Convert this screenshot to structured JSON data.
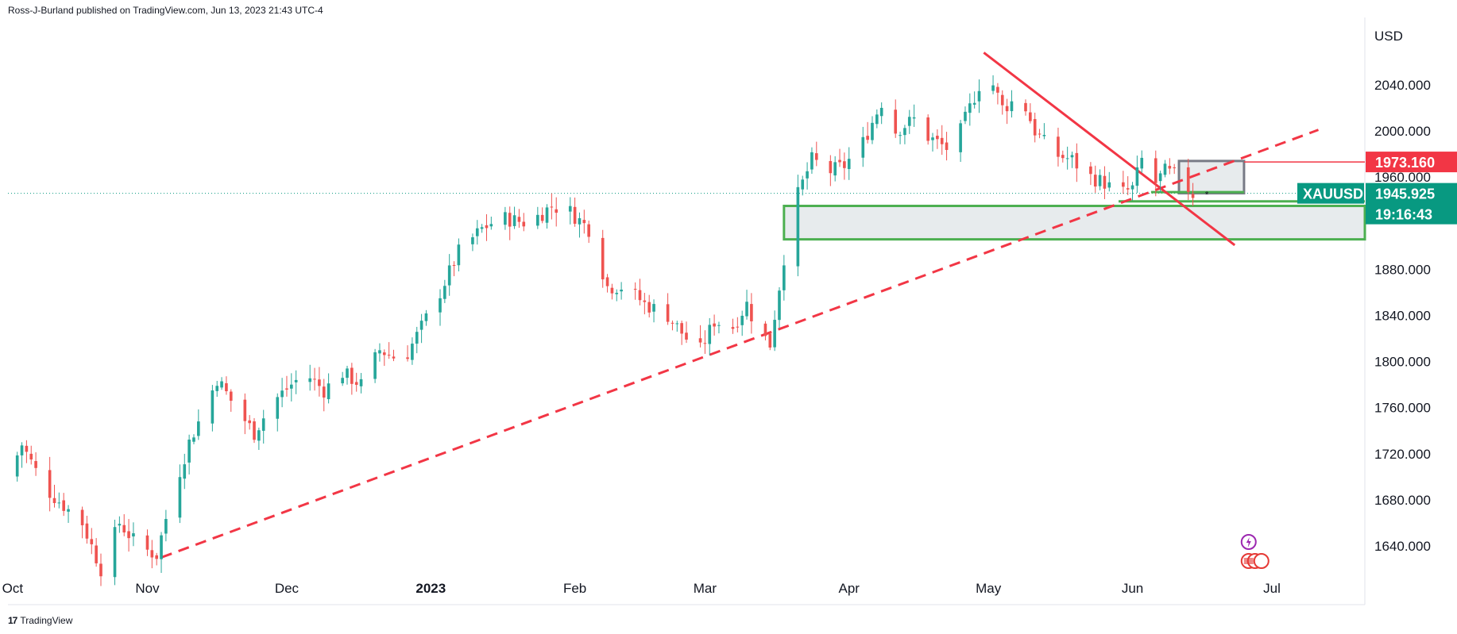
{
  "header": {
    "publisher": "Ross-J-Burland published on TradingView.com, Jun 13, 2023 21:43 UTC-4"
  },
  "footer": {
    "brand": "TradingView",
    "logo_glyph": "17"
  },
  "colors": {
    "up": "#26a69a",
    "down": "#ef5350",
    "trend_red": "#f23645",
    "zone_green": "#4caf50",
    "zone_fill": "#e7ebed",
    "price_tag": "#089981",
    "level_green": "#1b9e1b"
  },
  "chart_data": {
    "type": "candlestick",
    "symbol": "XAUUSD",
    "currency": "USD",
    "last_price": "1945.925",
    "countdown": "19:16:43",
    "ylim": [
      1600,
      2080
    ],
    "y_ticks": [
      1640,
      1680,
      1720,
      1760,
      1800,
      1840,
      1880,
      1920,
      1960,
      2000,
      2040
    ],
    "y_tick_labels": [
      "1640.000",
      "1680.000",
      "1720.000",
      "1760.000",
      "1800.000",
      "1840.000",
      "1880.000",
      "",
      "1960.000",
      "2000.000",
      "2040.000"
    ],
    "x_labels": [
      {
        "label": "Oct",
        "d": -29,
        "bold": false
      },
      {
        "label": "Nov",
        "d": 0,
        "bold": false
      },
      {
        "label": "Dec",
        "d": 30,
        "bold": false
      },
      {
        "label": "2023",
        "d": 61,
        "bold": true
      },
      {
        "label": "Feb",
        "d": 92,
        "bold": false
      },
      {
        "label": "Mar",
        "d": 120,
        "bold": false
      },
      {
        "label": "Apr",
        "d": 151,
        "bold": false
      },
      {
        "label": "May",
        "d": 181,
        "bold": false
      },
      {
        "label": "Jun",
        "d": 212,
        "bold": false
      },
      {
        "label": "Jul",
        "d": 242,
        "bold": false
      }
    ],
    "levels": [
      {
        "label": "1973.160",
        "value": 1973.16,
        "color": "#f23645"
      },
      {
        "label": "1938.150",
        "value": 1938.15,
        "color": "#1b9e1b"
      },
      {
        "label": "1932.110",
        "value": 1932.11,
        "color": "#1b9e1b"
      }
    ],
    "waypoints": [
      [
        -30,
        1700
      ],
      [
        -27,
        1728
      ],
      [
        -22,
        1690
      ],
      [
        -14,
        1660
      ],
      [
        -10,
        1620
      ],
      [
        -6,
        1660
      ],
      [
        -2,
        1640
      ],
      [
        2,
        1632
      ],
      [
        5,
        1680
      ],
      [
        9,
        1730
      ],
      [
        13,
        1765
      ],
      [
        15,
        1785
      ],
      [
        19,
        1760
      ],
      [
        23,
        1738
      ],
      [
        27,
        1765
      ],
      [
        31,
        1780
      ],
      [
        34,
        1790
      ],
      [
        38,
        1775
      ],
      [
        42,
        1790
      ],
      [
        46,
        1780
      ],
      [
        50,
        1810
      ],
      [
        55,
        1800
      ],
      [
        59,
        1830
      ],
      [
        63,
        1860
      ],
      [
        67,
        1895
      ],
      [
        72,
        1915
      ],
      [
        76,
        1925
      ],
      [
        82,
        1920
      ],
      [
        87,
        1935
      ],
      [
        91,
        1930
      ],
      [
        95,
        1915
      ],
      [
        99,
        1865
      ],
      [
        103,
        1865
      ],
      [
        107,
        1850
      ],
      [
        112,
        1840
      ],
      [
        116,
        1820
      ],
      [
        119,
        1810
      ],
      [
        122,
        1835
      ],
      [
        126,
        1830
      ],
      [
        129,
        1850
      ],
      [
        131,
        1830
      ],
      [
        134,
        1815
      ],
      [
        136,
        1865
      ],
      [
        138,
        1915
      ],
      [
        140,
        1945
      ],
      [
        143,
        1975
      ],
      [
        147,
        1965
      ],
      [
        150,
        1970
      ],
      [
        154,
        1990
      ],
      [
        158,
        2025
      ],
      [
        161,
        2000
      ],
      [
        165,
        2010
      ],
      [
        168,
        1995
      ],
      [
        172,
        1985
      ],
      [
        175,
        2000
      ],
      [
        179,
        2040
      ],
      [
        181,
        2050
      ],
      [
        184,
        2020
      ],
      [
        188,
        2030
      ],
      [
        191,
        2000
      ],
      [
        195,
        1980
      ],
      [
        199,
        1975
      ],
      [
        202,
        1962
      ],
      [
        206,
        1955
      ],
      [
        209,
        1945
      ],
      [
        212,
        1950
      ],
      [
        214,
        1975
      ],
      [
        216,
        1950
      ],
      [
        219,
        1965
      ],
      [
        222,
        1960
      ],
      [
        225,
        1945
      ]
    ]
  }
}
